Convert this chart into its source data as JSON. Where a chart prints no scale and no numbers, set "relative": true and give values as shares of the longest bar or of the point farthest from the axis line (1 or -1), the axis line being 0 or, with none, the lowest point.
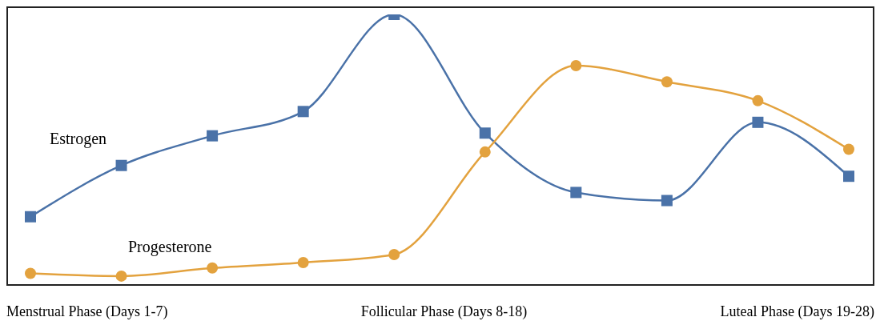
{
  "chart_data": {
    "type": "line",
    "relative": true,
    "categories": [
      null,
      null,
      null,
      null,
      null,
      null,
      null,
      null,
      null,
      null
    ],
    "series": [
      {
        "name": "Estrogen",
        "color": "#4a72a8",
        "marker": "square",
        "values": [
          0.25,
          0.44,
          0.55,
          0.64,
          1,
          0.56,
          0.34,
          0.31,
          0.6,
          0.4
        ]
      },
      {
        "name": "Progesterone",
        "color": "#e3a23e",
        "marker": "circle",
        "values": [
          0.04,
          0.03,
          0.06,
          0.08,
          0.11,
          0.49,
          0.81,
          0.75,
          0.68,
          0.5
        ]
      }
    ],
    "annotations": [
      "Menstrual Phase (Days 1-7)",
      "Follicular Phase (Days 8-18)",
      "Luteal Phase (Days 19-28)"
    ],
    "grid": false,
    "legend": false
  }
}
